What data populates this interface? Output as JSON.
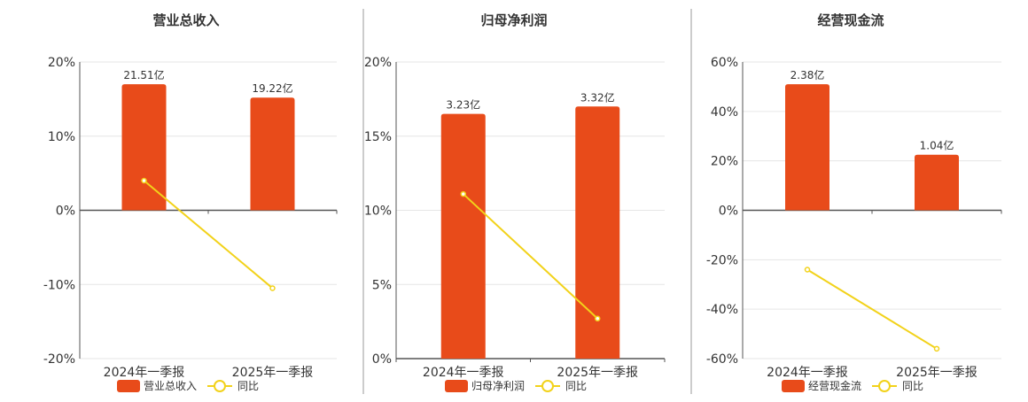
{
  "colors": {
    "bar": "#e84b1a",
    "line": "#f2d21a",
    "axis": "#555555",
    "grid": "#e6e6e6",
    "text": "#333333",
    "divider": "#999999"
  },
  "chart_data": [
    {
      "type": "bar",
      "title": "营业总收入",
      "categories": [
        "2024年一季报",
        "2025年一季报"
      ],
      "series": [
        {
          "name": "营业总收入",
          "type": "bar",
          "values": [
            17.0,
            15.2
          ],
          "labels": [
            "21.51亿",
            "19.22亿"
          ]
        },
        {
          "name": "同比",
          "type": "line",
          "values": [
            4.0,
            -10.5
          ]
        }
      ],
      "ylim": [
        -20,
        20
      ],
      "yticks": [
        20,
        10,
        0,
        -10,
        -20
      ],
      "ytick_labels": [
        "20%",
        "10%",
        "0%",
        "-10%",
        "-20%"
      ],
      "grid": true,
      "legend": "bottom"
    },
    {
      "type": "bar",
      "title": "归母净利润",
      "categories": [
        "2024年一季报",
        "2025年一季报"
      ],
      "series": [
        {
          "name": "归母净利润",
          "type": "bar",
          "values": [
            16.5,
            17.0
          ],
          "labels": [
            "3.23亿",
            "3.32亿"
          ]
        },
        {
          "name": "同比",
          "type": "line",
          "values": [
            11.1,
            2.7
          ]
        }
      ],
      "ylim": [
        0,
        20
      ],
      "yticks": [
        20,
        15,
        10,
        5,
        0
      ],
      "ytick_labels": [
        "20%",
        "15%",
        "10%",
        "5%",
        "0%"
      ],
      "grid": true,
      "legend": "bottom"
    },
    {
      "type": "bar",
      "title": "经营现金流",
      "categories": [
        "2024年一季报",
        "2025年一季报"
      ],
      "series": [
        {
          "name": "经营现金流",
          "type": "bar",
          "values": [
            51.0,
            22.5
          ],
          "labels": [
            "2.38亿",
            "1.04亿"
          ]
        },
        {
          "name": "同比",
          "type": "line",
          "values": [
            -24.0,
            -56.0
          ]
        }
      ],
      "ylim": [
        -60,
        60
      ],
      "yticks": [
        60,
        40,
        20,
        0,
        -20,
        -40,
        -60
      ],
      "ytick_labels": [
        "60%",
        "40%",
        "20%",
        "0%",
        "-20%",
        "-40%",
        "-60%"
      ],
      "grid": true,
      "legend": "bottom"
    }
  ]
}
